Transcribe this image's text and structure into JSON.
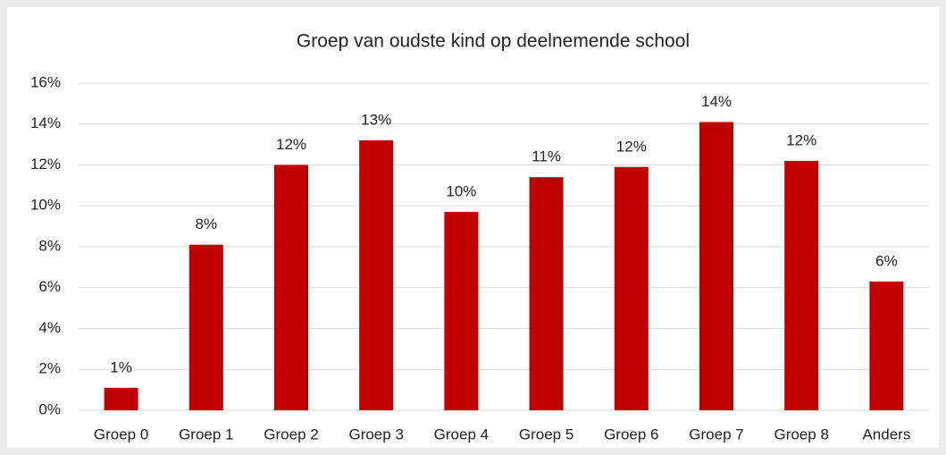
{
  "chart_data": {
    "type": "bar",
    "title": "Groep van oudste kind op deelnemende school",
    "categories": [
      "Groep 0",
      "Groep 1",
      "Groep 2",
      "Groep 3",
      "Groep 4",
      "Groep 5",
      "Groep 6",
      "Groep 7",
      "Groep 8",
      "Anders"
    ],
    "values": [
      1.1,
      8.1,
      12.0,
      13.2,
      9.7,
      11.4,
      11.9,
      14.1,
      12.2,
      6.3
    ],
    "value_labels": [
      "1%",
      "8%",
      "12%",
      "13%",
      "10%",
      "11%",
      "12%",
      "14%",
      "12%",
      "6%"
    ],
    "color": "#c00000",
    "ylim": [
      0,
      16
    ],
    "yticks": [
      {
        "value": 0,
        "label": "0%"
      },
      {
        "value": 2,
        "label": "2%"
      },
      {
        "value": 4,
        "label": "4%"
      },
      {
        "value": 6,
        "label": "6%"
      },
      {
        "value": 8,
        "label": "8%"
      },
      {
        "value": 10,
        "label": "10%"
      },
      {
        "value": 12,
        "label": "12%"
      },
      {
        "value": 14,
        "label": "14%"
      },
      {
        "value": 16,
        "label": "16%"
      }
    ],
    "grid": true
  }
}
